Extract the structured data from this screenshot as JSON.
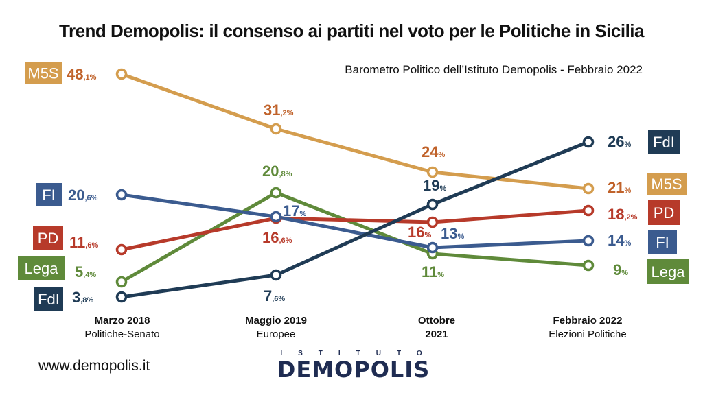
{
  "title": "Trend Demopolis: il consenso ai partiti nel voto per le Politiche in Sicilia",
  "subtitle": "Barometro Politico dell’Istituto Demopolis - Febbraio 2022",
  "website": "www.demopolis.it",
  "logo": {
    "top": "ISTITUTO",
    "bottom": "DEMOPOLIS"
  },
  "chart_data": {
    "type": "line",
    "categories": [
      {
        "main": "Marzo 2018",
        "sub": "Politiche-Senato"
      },
      {
        "main": "Maggio 2019",
        "sub": "Europee"
      },
      {
        "main": "Ottobre 2021",
        "sub": ""
      },
      {
        "main": "Febbraio 2022",
        "sub": "Elezioni Politiche"
      }
    ],
    "series": [
      {
        "name": "M5S",
        "color": "#d49d4e",
        "label_color": "#c0622a",
        "text_color": "#ffffff",
        "values": [
          48.1,
          31.2,
          24,
          21
        ],
        "labels": [
          [
            "48",
            ",1%"
          ],
          [
            "31",
            ",2%"
          ],
          [
            "24",
            "%"
          ],
          [
            "21",
            "%"
          ]
        ]
      },
      {
        "name": "FdI",
        "color": "#1f3b55",
        "label_color": "#1f3b55",
        "text_color": "#ffffff",
        "values": [
          3.8,
          7.6,
          19,
          26
        ],
        "labels": [
          [
            "3",
            ",8%"
          ],
          [
            "7",
            ",6%"
          ],
          [
            "19",
            "%"
          ],
          [
            "26",
            "%"
          ]
        ]
      },
      {
        "name": "FI",
        "color": "#3b5b8f",
        "label_color": "#3b5b8f",
        "text_color": "#ffffff",
        "values": [
          20.6,
          17,
          13,
          14
        ],
        "labels": [
          [
            "20",
            ",6%"
          ],
          [
            "17",
            "%"
          ],
          [
            "13",
            "%"
          ],
          [
            "14",
            "%"
          ]
        ]
      },
      {
        "name": "PD",
        "color": "#b73a2a",
        "label_color": "#b73a2a",
        "text_color": "#ffffff",
        "values": [
          11.6,
          16.6,
          16,
          18.2
        ],
        "labels": [
          [
            "11",
            ",6%"
          ],
          [
            "16",
            ",6%"
          ],
          [
            "16",
            "%"
          ],
          [
            "18",
            ",2%"
          ]
        ]
      },
      {
        "name": "Lega",
        "color": "#5f8a3a",
        "label_color": "#5f8a3a",
        "text_color": "#ffffff",
        "values": [
          5.4,
          20.8,
          11,
          9
        ],
        "labels": [
          [
            "5",
            ",4%"
          ],
          [
            "20",
            ",8%"
          ],
          [
            "11",
            "%"
          ],
          [
            "9",
            "%"
          ]
        ]
      }
    ]
  }
}
